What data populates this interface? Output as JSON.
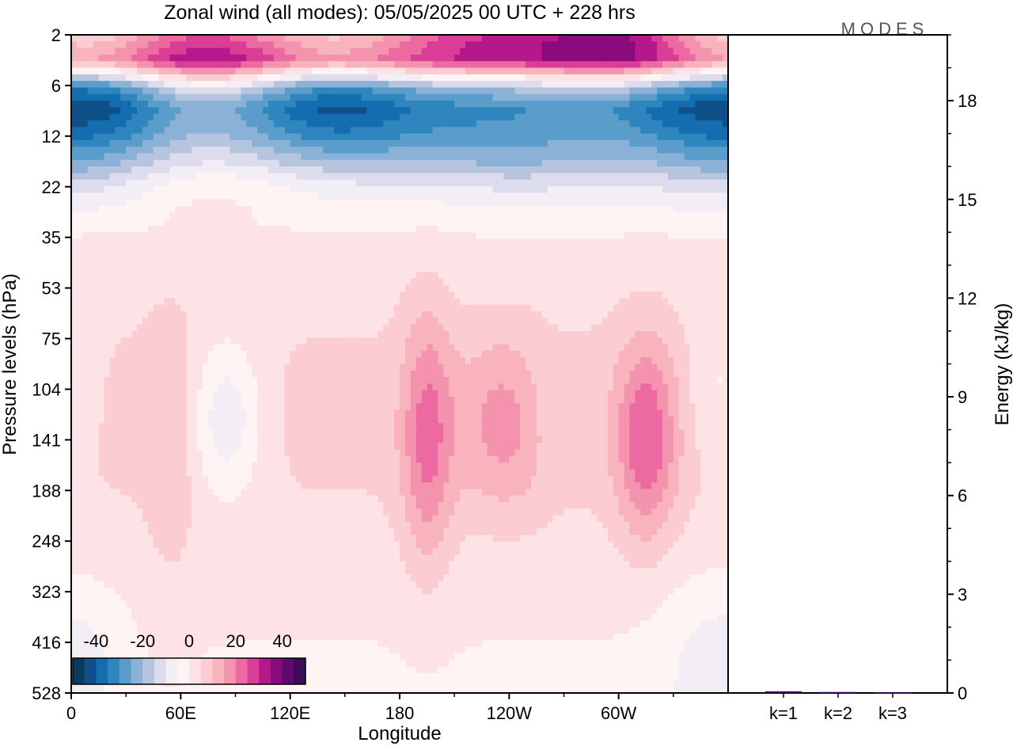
{
  "chart_data": [
    {
      "type": "heatmap",
      "title": "Zonal wind (all modes):  05/05/2025  00 UTC  + 228 hrs",
      "xlabel": "Longitude",
      "ylabel": "Pressure levels (hPa)",
      "x_ticks": [
        "0",
        "60E",
        "120E",
        "180",
        "120W",
        "60W"
      ],
      "y_ticks": [
        "2",
        "6",
        "12",
        "22",
        "35",
        "53",
        "75",
        "104",
        "141",
        "188",
        "248",
        "323",
        "416",
        "528"
      ],
      "colorbar": {
        "labels": [
          "-40",
          "-20",
          "0",
          "20",
          "40"
        ],
        "colors": [
          "#0b3a5e",
          "#0e5188",
          "#136daf",
          "#2f86be",
          "#5a9dcb",
          "#8bb2d6",
          "#b7c4de",
          "#dcdcec",
          "#f3eef6",
          "#fff4f4",
          "#fde3e5",
          "#fbcdd2",
          "#f8b3bd",
          "#f493ae",
          "#ec6aa1",
          "#d93d95",
          "#b4188a",
          "#8a0b7d",
          "#5e0a6f",
          "#3d0a5c"
        ]
      },
      "wind_bands": [
        {
          "levels": [
            "2",
            "6"
          ],
          "sign": "easterly-to-westerly",
          "peak": 30
        },
        {
          "levels": [
            "6",
            "22"
          ],
          "sign": "easterly",
          "peak": -35
        },
        {
          "levels": [
            "22",
            "35"
          ],
          "sign": "easterly",
          "peak": -10
        },
        {
          "levels": [
            "75",
            "323"
          ],
          "sign": "westerly",
          "peak": 25
        }
      ],
      "features": [
        {
          "lon": 195,
          "level": "104",
          "value": 22
        },
        {
          "lon": 240,
          "level": "104",
          "value": 18
        },
        {
          "lon": 315,
          "level": "141",
          "value": 25
        },
        {
          "lon": 85,
          "level": "104",
          "value": -8
        },
        {
          "lon": 55,
          "level": "141",
          "value": 8
        }
      ]
    },
    {
      "type": "bar",
      "categories": [
        "k=1",
        "k=2",
        "k=3"
      ],
      "values": [
        0.05,
        0.03,
        0.02
      ],
      "ylabel": "Energy (kJ/kg)",
      "y_ticks": [
        "0",
        "3",
        "6",
        "9",
        "12",
        "15",
        "18"
      ],
      "ylim": [
        0,
        20
      ],
      "color": "#3d0a5c"
    }
  ],
  "logo": "MODES"
}
